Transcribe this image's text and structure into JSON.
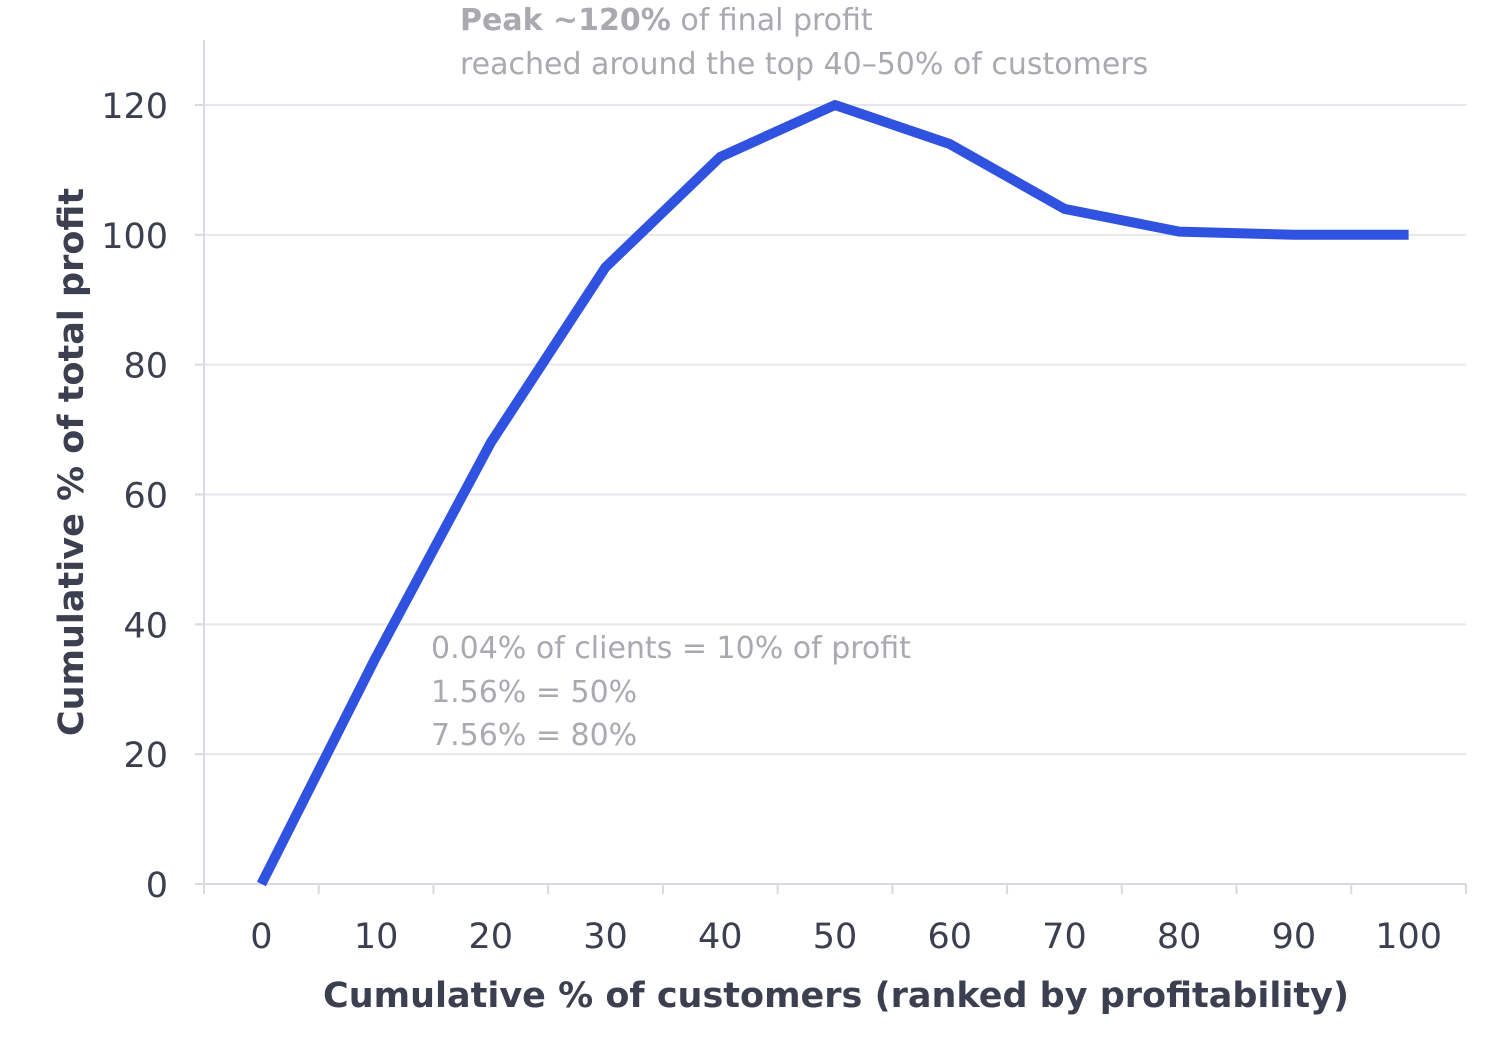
{
  "chart_data": {
    "type": "line",
    "title": "",
    "xlabel": "Cumulative % of customers (ranked by profitability)",
    "ylabel": "Cumulative % of total profit",
    "xlim": [
      -5,
      105
    ],
    "ylim": [
      0,
      130
    ],
    "grid": true,
    "x_ticks": [
      0,
      10,
      20,
      30,
      40,
      50,
      60,
      70,
      80,
      90,
      100
    ],
    "y_ticks": [
      0,
      20,
      40,
      60,
      80,
      100,
      120
    ],
    "series": [
      {
        "color": "#2f52e0",
        "x": [
          0,
          10,
          20,
          30,
          40,
          50,
          60,
          70,
          80,
          90,
          100
        ],
        "y": [
          0,
          35,
          68,
          95,
          112,
          120,
          114,
          104,
          100.5,
          100,
          100
        ]
      }
    ],
    "annotations": {
      "peak": {
        "bold": "Peak ~120%",
        "rest": " of final profit",
        "line2": "reached around the top 40–50% of customers"
      },
      "concentration": [
        "0.04% of clients = 10% of profit",
        "1.56% = 50%",
        "7.56% = 80%"
      ]
    }
  }
}
